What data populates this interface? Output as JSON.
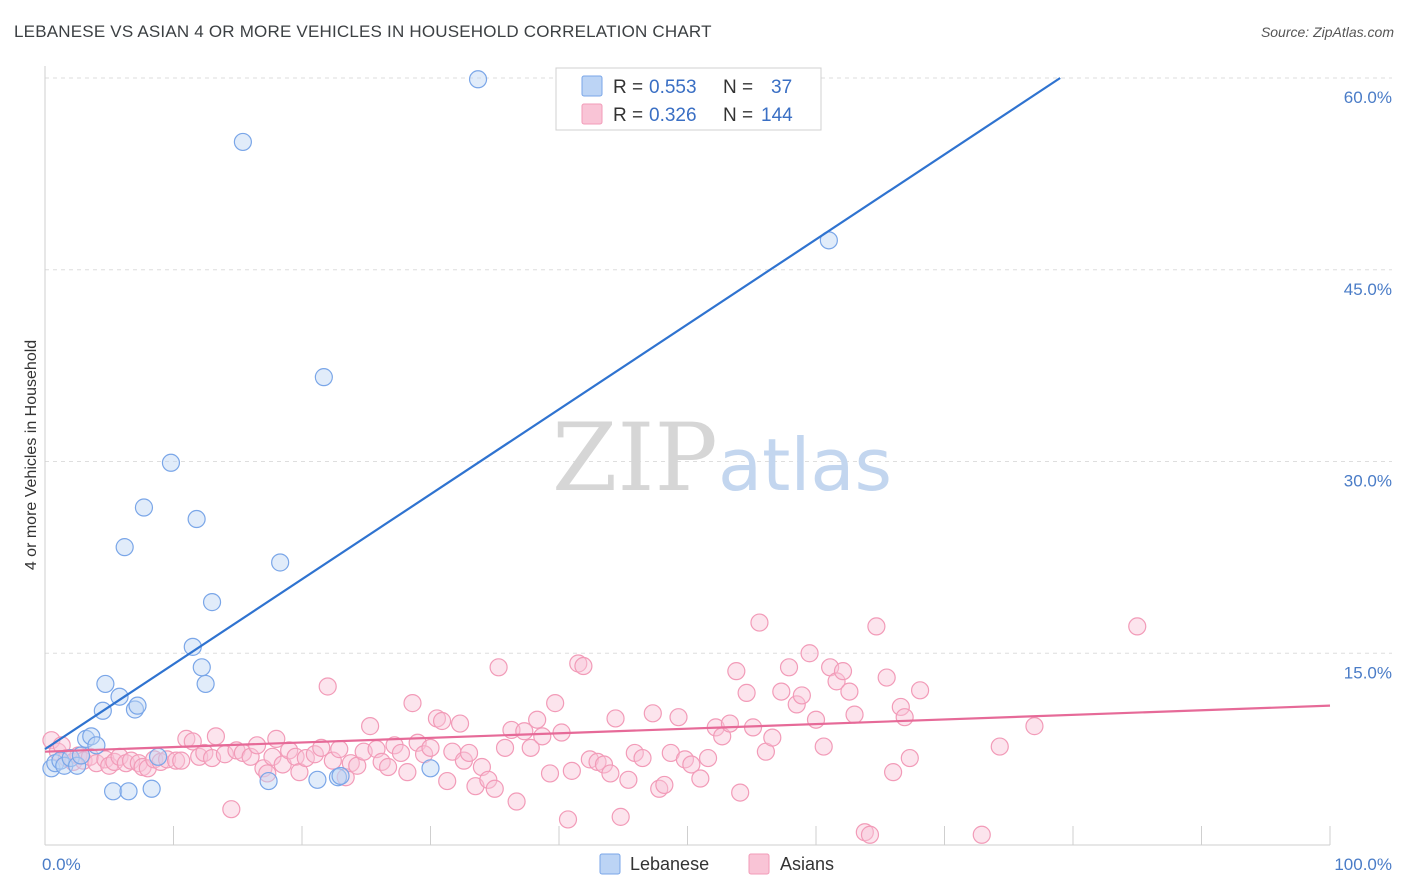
{
  "header": {
    "title": "LEBANESE VS ASIAN 4 OR MORE VEHICLES IN HOUSEHOLD CORRELATION CHART",
    "source": "Source: ZipAtlas.com"
  },
  "watermark": {
    "zip": "ZIP",
    "atlas": "atlas"
  },
  "legend": {
    "r_label": "R =",
    "n_label": "N =",
    "items": [
      {
        "r": "0.553",
        "n": "37"
      },
      {
        "r": "0.326",
        "n": "144"
      }
    ]
  },
  "chart_data": {
    "type": "scatter",
    "title": "LEBANESE VS ASIAN 4 OR MORE VEHICLES IN HOUSEHOLD CORRELATION CHART",
    "xlabel": "",
    "ylabel": "4 or more Vehicles in Household",
    "xlim": [
      0,
      100
    ],
    "ylim": [
      0,
      60
    ],
    "x_tick_labels": [
      "0.0%",
      "100.0%"
    ],
    "y_ticks": [
      15,
      30,
      45,
      60
    ],
    "y_tick_labels": [
      "15.0%",
      "30.0%",
      "45.0%",
      "60.0%"
    ],
    "grid": "horizontal dashed",
    "legend_position": "top-center",
    "colors": {
      "lebanese": "#7aa6e8",
      "asians": "#f29bb8",
      "lebanese_line": "#2f73d0",
      "asians_line": "#e66a98"
    },
    "series": [
      {
        "name": "Lebanese",
        "r": 0.553,
        "n": 37,
        "trend": {
          "x": [
            0,
            79
          ],
          "y": [
            7.5,
            60.0
          ]
        },
        "points": [
          [
            0.5,
            6.0
          ],
          [
            0.8,
            6.4
          ],
          [
            1.2,
            6.6
          ],
          [
            1.5,
            6.2
          ],
          [
            2.0,
            6.8
          ],
          [
            2.5,
            6.2
          ],
          [
            2.8,
            7.0
          ],
          [
            3.2,
            8.3
          ],
          [
            3.6,
            8.5
          ],
          [
            4.0,
            7.8
          ],
          [
            4.5,
            10.5
          ],
          [
            4.7,
            12.6
          ],
          [
            5.3,
            4.2
          ],
          [
            5.8,
            11.6
          ],
          [
            6.2,
            23.3
          ],
          [
            6.5,
            4.2
          ],
          [
            7.0,
            10.6
          ],
          [
            7.2,
            10.9
          ],
          [
            7.7,
            26.4
          ],
          [
            8.3,
            4.4
          ],
          [
            8.8,
            6.9
          ],
          [
            9.8,
            29.9
          ],
          [
            11.5,
            15.5
          ],
          [
            11.8,
            25.5
          ],
          [
            12.2,
            13.9
          ],
          [
            12.5,
            12.6
          ],
          [
            13.0,
            19.0
          ],
          [
            15.4,
            55.0
          ],
          [
            17.4,
            5.0
          ],
          [
            18.3,
            22.1
          ],
          [
            21.2,
            5.1
          ],
          [
            21.7,
            36.6
          ],
          [
            22.8,
            5.3
          ],
          [
            23.0,
            5.4
          ],
          [
            30.0,
            6.0
          ],
          [
            33.7,
            59.9
          ],
          [
            61.0,
            47.3
          ]
        ]
      },
      {
        "name": "Asians",
        "r": 0.326,
        "n": 144,
        "trend": {
          "x": [
            0,
            100
          ],
          "y": [
            7.3,
            10.9
          ]
        },
        "points": [
          [
            0.5,
            8.2
          ],
          [
            1.0,
            7.3
          ],
          [
            1.3,
            7.8
          ],
          [
            1.7,
            6.8
          ],
          [
            2.2,
            6.5
          ],
          [
            2.6,
            7.0
          ],
          [
            3.0,
            6.6
          ],
          [
            3.5,
            6.9
          ],
          [
            4.0,
            6.4
          ],
          [
            4.7,
            6.7
          ],
          [
            5.0,
            6.2
          ],
          [
            5.4,
            6.5
          ],
          [
            5.8,
            6.9
          ],
          [
            6.3,
            6.4
          ],
          [
            6.7,
            6.6
          ],
          [
            7.3,
            6.4
          ],
          [
            7.6,
            6.1
          ],
          [
            8.0,
            6.0
          ],
          [
            8.5,
            6.7
          ],
          [
            9.0,
            6.5
          ],
          [
            9.5,
            6.7
          ],
          [
            10.2,
            6.6
          ],
          [
            10.6,
            6.6
          ],
          [
            11.0,
            8.3
          ],
          [
            11.5,
            8.1
          ],
          [
            12.0,
            6.9
          ],
          [
            12.4,
            7.2
          ],
          [
            13.0,
            6.8
          ],
          [
            13.3,
            8.5
          ],
          [
            14.0,
            7.1
          ],
          [
            14.5,
            2.8
          ],
          [
            14.9,
            7.4
          ],
          [
            15.4,
            7.2
          ],
          [
            16.0,
            6.9
          ],
          [
            16.5,
            7.8
          ],
          [
            17.0,
            6.0
          ],
          [
            17.3,
            5.6
          ],
          [
            17.7,
            6.9
          ],
          [
            18.0,
            8.3
          ],
          [
            18.5,
            6.3
          ],
          [
            19.0,
            7.4
          ],
          [
            19.5,
            6.9
          ],
          [
            19.8,
            5.7
          ],
          [
            20.3,
            6.8
          ],
          [
            21.0,
            7.1
          ],
          [
            21.5,
            7.6
          ],
          [
            22.0,
            12.4
          ],
          [
            22.4,
            6.6
          ],
          [
            22.9,
            7.5
          ],
          [
            23.4,
            5.3
          ],
          [
            23.8,
            6.4
          ],
          [
            24.3,
            6.2
          ],
          [
            24.8,
            7.3
          ],
          [
            25.3,
            9.3
          ],
          [
            25.8,
            7.5
          ],
          [
            26.2,
            6.5
          ],
          [
            26.7,
            6.1
          ],
          [
            27.2,
            7.8
          ],
          [
            27.7,
            7.2
          ],
          [
            28.2,
            5.7
          ],
          [
            28.6,
            11.1
          ],
          [
            29.0,
            8.0
          ],
          [
            29.5,
            7.1
          ],
          [
            30.0,
            7.6
          ],
          [
            30.5,
            9.9
          ],
          [
            30.9,
            9.7
          ],
          [
            31.3,
            5.0
          ],
          [
            31.7,
            7.3
          ],
          [
            32.3,
            9.5
          ],
          [
            32.6,
            6.6
          ],
          [
            33.0,
            7.2
          ],
          [
            33.5,
            4.6
          ],
          [
            34.0,
            6.1
          ],
          [
            34.5,
            5.1
          ],
          [
            35.0,
            4.4
          ],
          [
            35.3,
            13.9
          ],
          [
            35.8,
            7.6
          ],
          [
            36.3,
            9.0
          ],
          [
            36.7,
            3.4
          ],
          [
            37.3,
            8.9
          ],
          [
            37.8,
            7.6
          ],
          [
            38.3,
            9.8
          ],
          [
            38.7,
            8.5
          ],
          [
            39.3,
            5.6
          ],
          [
            39.7,
            11.1
          ],
          [
            40.2,
            8.8
          ],
          [
            40.7,
            2.0
          ],
          [
            41.0,
            5.8
          ],
          [
            41.5,
            14.2
          ],
          [
            41.9,
            14.0
          ],
          [
            42.4,
            6.7
          ],
          [
            43.0,
            6.5
          ],
          [
            43.5,
            6.3
          ],
          [
            44.0,
            5.6
          ],
          [
            44.4,
            9.9
          ],
          [
            44.8,
            2.2
          ],
          [
            45.4,
            5.1
          ],
          [
            45.9,
            7.2
          ],
          [
            46.5,
            6.8
          ],
          [
            47.3,
            10.3
          ],
          [
            47.8,
            4.4
          ],
          [
            48.2,
            4.7
          ],
          [
            48.7,
            7.2
          ],
          [
            49.3,
            10.0
          ],
          [
            49.8,
            6.7
          ],
          [
            50.3,
            6.3
          ],
          [
            51.0,
            5.2
          ],
          [
            51.6,
            6.8
          ],
          [
            52.2,
            9.2
          ],
          [
            52.7,
            8.5
          ],
          [
            53.3,
            9.5
          ],
          [
            53.8,
            13.6
          ],
          [
            54.1,
            4.1
          ],
          [
            54.6,
            11.9
          ],
          [
            55.1,
            9.2
          ],
          [
            55.6,
            17.4
          ],
          [
            56.1,
            7.3
          ],
          [
            56.6,
            8.4
          ],
          [
            57.3,
            12.0
          ],
          [
            57.9,
            13.9
          ],
          [
            58.5,
            11.0
          ],
          [
            58.9,
            11.7
          ],
          [
            59.5,
            15.0
          ],
          [
            60.0,
            9.8
          ],
          [
            60.6,
            7.7
          ],
          [
            61.1,
            13.9
          ],
          [
            61.6,
            12.8
          ],
          [
            62.1,
            13.6
          ],
          [
            62.6,
            12.0
          ],
          [
            63.0,
            10.2
          ],
          [
            63.8,
            1.0
          ],
          [
            64.2,
            0.8
          ],
          [
            64.7,
            17.1
          ],
          [
            65.5,
            13.1
          ],
          [
            66.0,
            5.7
          ],
          [
            66.6,
            10.8
          ],
          [
            66.9,
            10.0
          ],
          [
            67.3,
            6.8
          ],
          [
            68.1,
            12.1
          ],
          [
            72.9,
            0.8
          ],
          [
            74.3,
            7.7
          ],
          [
            77.0,
            9.3
          ],
          [
            85.0,
            17.1
          ]
        ]
      }
    ]
  }
}
